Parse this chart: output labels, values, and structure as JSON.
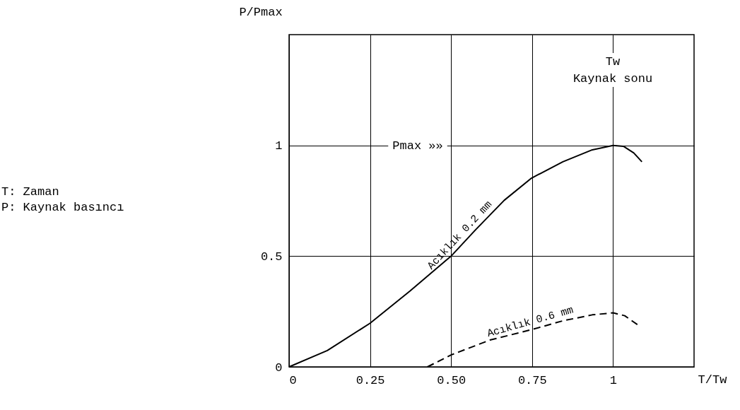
{
  "chart_data": {
    "type": "line",
    "ylabel": "P/Pmax",
    "xlabel": "T/Tw",
    "xlim": [
      0,
      1.25
    ],
    "ylim": [
      0,
      1.5
    ],
    "xticks": [
      0,
      0.25,
      {
        "value": 0.5,
        "label": "0.50"
      },
      0.75,
      1
    ],
    "yticks": [
      0,
      0.5,
      1
    ],
    "grid": true,
    "marker": "none",
    "series": [
      {
        "name": "Acıklık 0.2 mm",
        "color": "#000000",
        "line_style": "solid",
        "x": [
          0,
          0.118,
          0.25,
          0.373,
          0.5,
          0.575,
          0.664,
          0.748,
          0.845,
          0.936,
          1.0,
          1.032,
          1.064,
          1.089
        ],
        "values": [
          0,
          0.074,
          0.197,
          0.342,
          0.5,
          0.618,
          0.752,
          0.852,
          0.926,
          0.98,
          1.0,
          0.996,
          0.966,
          0.926
        ]
      },
      {
        "name": "Acıklık 0.6 mm",
        "color": "#000000",
        "line_style": "dashed",
        "x": [
          0.427,
          0.5,
          0.62,
          0.748,
          0.845,
          0.936,
          1.0,
          1.036,
          1.075
        ],
        "values": [
          0,
          0.054,
          0.121,
          0.168,
          0.208,
          0.235,
          0.244,
          0.231,
          0.191
        ]
      }
    ],
    "annotations": [
      "T: Zaman",
      "P: Kaynak basıncı",
      "Pmax »»",
      "Tw\nKaynak sonu"
    ]
  }
}
